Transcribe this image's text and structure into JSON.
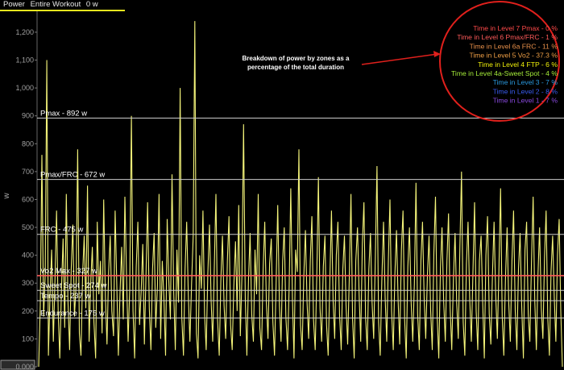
{
  "header": {
    "metric": "Power",
    "scope": "Entire Workout",
    "value": "0 w"
  },
  "colors": {
    "background": "#000000",
    "power_line": "#f4f47a",
    "zone_line": "#cccccc",
    "vo2_line": "#ff5a5a",
    "callout_ellipse": "#e0201c"
  },
  "zone_breakdown": {
    "caption_line1": "Breakdown of power by zones as a",
    "caption_line2": "percentage of the total duration",
    "items": [
      {
        "label": "Time in Level 7 Pmax - 0 %",
        "color": "#ff4a4a"
      },
      {
        "label": "Time in Level 6 Pmax/FRC - 1 %",
        "color": "#ff5a5a"
      },
      {
        "label": "Time in Level 6a FRC - 11 %",
        "color": "#e8904a"
      },
      {
        "label": "Time in Level 5 Vo2 - 37.3 %",
        "color": "#f0a046"
      },
      {
        "label": "Time in Level 4 FTP - 6 %",
        "color": "#f2f20a"
      },
      {
        "label": "Time in Level 4a-Sweet Spot - 4 %",
        "color": "#a6ee3a"
      },
      {
        "label": "Time in Level 3 - 7 %",
        "color": "#2a9ae0"
      },
      {
        "label": "Time in Level 2 - 8 %",
        "color": "#3a5cf0"
      },
      {
        "label": "Time in Level 1 - 7 %",
        "color": "#8a4ae0"
      }
    ]
  },
  "chart_data": {
    "type": "line",
    "title": "",
    "xlabel": "",
    "ylabel": "w",
    "ylim": [
      0,
      1275
    ],
    "grid": false,
    "yticks": [
      {
        "value": 0,
        "label": "0.000"
      },
      {
        "value": 100,
        "label": "100"
      },
      {
        "value": 200,
        "label": "200"
      },
      {
        "value": 300,
        "label": "300"
      },
      {
        "value": 400,
        "label": "400"
      },
      {
        "value": 500,
        "label": "500"
      },
      {
        "value": 600,
        "label": "600"
      },
      {
        "value": 700,
        "label": "700"
      },
      {
        "value": 800,
        "label": "800"
      },
      {
        "value": 900,
        "label": "900"
      },
      {
        "value": 1000,
        "label": "1,000"
      },
      {
        "value": 1100,
        "label": "1,100"
      },
      {
        "value": 1200,
        "label": "1,200"
      }
    ],
    "zones": [
      {
        "name": "Pmax - 892 w",
        "value": 892
      },
      {
        "name": "Pmax/FRC - 672 w",
        "value": 672
      },
      {
        "name": "FRC - 475 w",
        "value": 475
      },
      {
        "name": "Vo2 Max - 327 w",
        "value": 327
      },
      {
        "name": "Sweet Spot - 274 w",
        "value": 274
      },
      {
        "name": "Tempo - 237 w",
        "value": 237
      },
      {
        "name": "Endurance - 175 w",
        "value": 175
      }
    ],
    "series": [
      {
        "values": [
          0,
          220,
          760,
          180,
          330,
          1100,
          40,
          260,
          420,
          90,
          310,
          560,
          200,
          30,
          280,
          460,
          140,
          620,
          240,
          60,
          350,
          510,
          180,
          290,
          780,
          120,
          40,
          330,
          470,
          210,
          650,
          90,
          300,
          430,
          160,
          30,
          520,
          260,
          380,
          120,
          600,
          250,
          80,
          340,
          470,
          200,
          110,
          560,
          300,
          40,
          260,
          430,
          170,
          610,
          330,
          90,
          280,
          900,
          200,
          30,
          360,
          520,
          150,
          270,
          440,
          80,
          330,
          590,
          210,
          60,
          350,
          480,
          140,
          290,
          620,
          100,
          380,
          250,
          40,
          530,
          310,
          170,
          690,
          280,
          60,
          420,
          230,
          1000,
          180,
          40,
          350,
          520,
          260,
          90,
          300,
          470,
          1240,
          120,
          30,
          400,
          280,
          560,
          190,
          60,
          330,
          510,
          240,
          90,
          360,
          620,
          170,
          40,
          310,
          470,
          220,
          100,
          380,
          540,
          150,
          60,
          290,
          450,
          200,
          580,
          110,
          330,
          870,
          250,
          40,
          310,
          480,
          190,
          90,
          420,
          260,
          620,
          140,
          60,
          350,
          520,
          230,
          100,
          370,
          460,
          160,
          40,
          300,
          580,
          220,
          90,
          380,
          500,
          180,
          60,
          290,
          640,
          250,
          30,
          420,
          340,
          780,
          150,
          60,
          320,
          490,
          230,
          100,
          380,
          540,
          170,
          60,
          330,
          680,
          210,
          90,
          360,
          470,
          150,
          40,
          300,
          560,
          240,
          100,
          400,
          520,
          190,
          60,
          350,
          470,
          220,
          80,
          330,
          620,
          170,
          30,
          380,
          500,
          260,
          90,
          440,
          590,
          180,
          60,
          350,
          480,
          230,
          100,
          400,
          720,
          160,
          40,
          310,
          520,
          250,
          90,
          380,
          600,
          200,
          60,
          330,
          490,
          240,
          80,
          420,
          560,
          170,
          30,
          360,
          500,
          230,
          90,
          300,
          660,
          190,
          60,
          380,
          520,
          250,
          100,
          330,
          470,
          200,
          60,
          410,
          610,
          180,
          30,
          350,
          500,
          240,
          90,
          380,
          550,
          210,
          60,
          320,
          480,
          230,
          100,
          430,
          700,
          160,
          40,
          370,
          520,
          250,
          90,
          340,
          590,
          200,
          60,
          380,
          470,
          230,
          30,
          400,
          540,
          190,
          80,
          330,
          520,
          260,
          100,
          360,
          640,
          180,
          40,
          310,
          500,
          230,
          90,
          380,
          560,
          200,
          60,
          350,
          480,
          220,
          30,
          420,
          520,
          190,
          90,
          370,
          610,
          240,
          60,
          330,
          500,
          210,
          100,
          390,
          560,
          180,
          40,
          340,
          470,
          250,
          90,
          400,
          530,
          200,
          0
        ]
      }
    ]
  }
}
